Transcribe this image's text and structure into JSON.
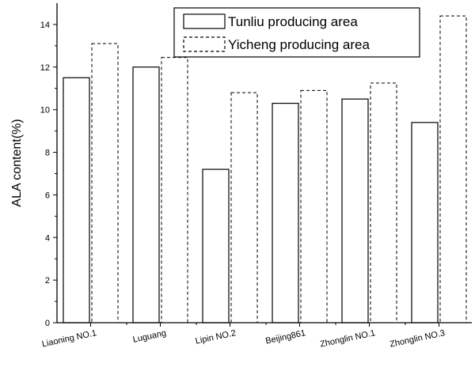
{
  "chart_data": {
    "type": "bar",
    "title": "",
    "xlabel": "",
    "ylabel": "ALA content(%)",
    "categories": [
      "Liaoning NO.1",
      "Luguang",
      "Lipin NO.2",
      "Beijing861",
      "Zhonglin NO.1",
      "Zhonglin NO.3"
    ],
    "series": [
      {
        "name": "Tunliu producing area",
        "line_style": "solid",
        "values": [
          11.5,
          12.0,
          7.2,
          10.3,
          10.5,
          9.4
        ]
      },
      {
        "name": "Yicheng producing area",
        "line_style": "dashed",
        "values": [
          13.1,
          12.45,
          10.8,
          10.9,
          11.25,
          14.4
        ]
      }
    ],
    "ylim": [
      0,
      15
    ],
    "yticks": [
      0,
      2,
      4,
      6,
      8,
      10,
      12,
      14
    ],
    "grid": false,
    "legend_position": "top-right",
    "colors": {
      "bar_fill": "#ffffff",
      "bar_stroke": "#000000",
      "axis": "#000000"
    }
  }
}
